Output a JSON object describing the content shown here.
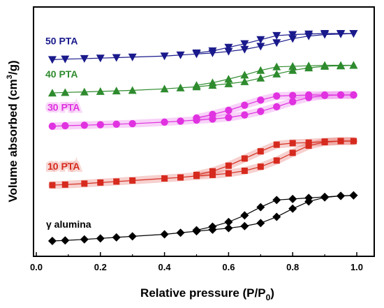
{
  "chart_data": {
    "type": "line",
    "title": "",
    "xlabel": "Relative pressure (P/P",
    "xlabel_sub": "0",
    "xlabel_close": ")",
    "ylabel": "Volume absorbed (cm",
    "ylabel_sup": "3",
    "ylabel_close": "/g)",
    "xlim": [
      0.0,
      1.0
    ],
    "xticks": [
      "0.0",
      "0.2",
      "0.4",
      "0.6",
      "0.8",
      "1.0"
    ],
    "y_tick_labels_shown": false,
    "grid": false,
    "series": [
      {
        "name": "γ alumina",
        "color": "#000000",
        "marker": "diamond",
        "halo": false,
        "adsorption": {
          "x": [
            0.05,
            0.09,
            0.15,
            0.2,
            0.25,
            0.3,
            0.4,
            0.45,
            0.5,
            0.55,
            0.6,
            0.65,
            0.7,
            0.75,
            0.8,
            0.85,
            0.9,
            0.95,
            0.99
          ],
          "y": [
            0,
            1,
            3,
            5,
            7,
            9,
            13,
            16,
            19,
            22,
            25,
            29,
            35,
            47,
            63,
            77,
            85,
            88,
            89
          ]
        },
        "desorption": {
          "x": [
            0.99,
            0.95,
            0.9,
            0.85,
            0.8,
            0.75,
            0.7,
            0.65,
            0.6,
            0.55,
            0.5
          ],
          "y": [
            89,
            88,
            86,
            84,
            82,
            80,
            66,
            50,
            37,
            28,
            21
          ]
        }
      },
      {
        "name": "10 PTA",
        "color": "#d62a1e",
        "marker": "square",
        "halo": true,
        "adsorption": {
          "x": [
            0.05,
            0.09,
            0.15,
            0.2,
            0.25,
            0.3,
            0.4,
            0.45,
            0.5,
            0.55,
            0.6,
            0.65,
            0.7,
            0.75,
            0.8,
            0.85,
            0.9,
            0.95,
            0.99
          ],
          "y": [
            109,
            110,
            112,
            114,
            116,
            118,
            122,
            124,
            127,
            129,
            132,
            137,
            145,
            157,
            172,
            186,
            193,
            195,
            195
          ]
        },
        "desorption": {
          "x": [
            0.99,
            0.95,
            0.9,
            0.85,
            0.8,
            0.75,
            0.7,
            0.65,
            0.6,
            0.55,
            0.5
          ],
          "y": [
            195,
            195,
            194,
            192,
            191,
            188,
            175,
            161,
            147,
            136,
            129
          ]
        }
      },
      {
        "name": "30 PTA",
        "color": "#e032e0",
        "marker": "circle",
        "halo": true,
        "adsorption": {
          "x": [
            0.05,
            0.09,
            0.15,
            0.2,
            0.25,
            0.3,
            0.4,
            0.45,
            0.5,
            0.55,
            0.6,
            0.65,
            0.7,
            0.75,
            0.8,
            0.85,
            0.9,
            0.95,
            0.99
          ],
          "y": [
            224,
            225,
            226,
            227,
            228,
            229,
            232,
            234,
            236,
            238,
            241,
            246,
            253,
            262,
            272,
            280,
            284,
            285,
            285
          ]
        },
        "desorption": {
          "x": [
            0.99,
            0.95,
            0.9,
            0.85,
            0.8,
            0.75,
            0.7,
            0.65,
            0.6,
            0.55,
            0.5
          ],
          "y": [
            285,
            285,
            285,
            285,
            284,
            283,
            275,
            265,
            255,
            247,
            240
          ]
        }
      },
      {
        "name": "40 PTA",
        "color": "#2e8b2e",
        "marker": "triangle-up",
        "halo": false,
        "adsorption": {
          "x": [
            0.05,
            0.09,
            0.15,
            0.2,
            0.25,
            0.3,
            0.4,
            0.45,
            0.5,
            0.55,
            0.6,
            0.65,
            0.7,
            0.75,
            0.8,
            0.85,
            0.9,
            0.95,
            0.99
          ],
          "y": [
            289,
            290,
            291,
            292,
            293,
            294,
            297,
            299,
            301,
            304,
            307,
            311,
            318,
            326,
            333,
            338,
            341,
            342,
            343
          ]
        },
        "desorption": {
          "x": [
            0.99,
            0.95,
            0.9,
            0.85,
            0.8,
            0.75,
            0.7,
            0.65,
            0.6,
            0.55,
            0.5
          ],
          "y": [
            343,
            343,
            343,
            342,
            341,
            340,
            333,
            324,
            316,
            309,
            304
          ]
        }
      },
      {
        "name": "50 PTA",
        "color": "#1a1a8c",
        "marker": "triangle-down",
        "halo": false,
        "adsorption": {
          "x": [
            0.05,
            0.09,
            0.15,
            0.2,
            0.25,
            0.3,
            0.4,
            0.45,
            0.5,
            0.55,
            0.6,
            0.65,
            0.7,
            0.75,
            0.8,
            0.85,
            0.9,
            0.95,
            0.99
          ],
          "y": [
            354,
            355,
            356,
            357,
            358,
            359,
            361,
            363,
            365,
            367,
            370,
            374,
            380,
            387,
            395,
            400,
            403,
            404,
            405
          ]
        },
        "desorption": {
          "x": [
            0.99,
            0.95,
            0.9,
            0.85,
            0.8,
            0.75,
            0.7,
            0.65,
            0.6,
            0.55,
            0.5
          ],
          "y": [
            405,
            405,
            405,
            404,
            403,
            401,
            393,
            385,
            378,
            371,
            367
          ]
        }
      }
    ]
  }
}
